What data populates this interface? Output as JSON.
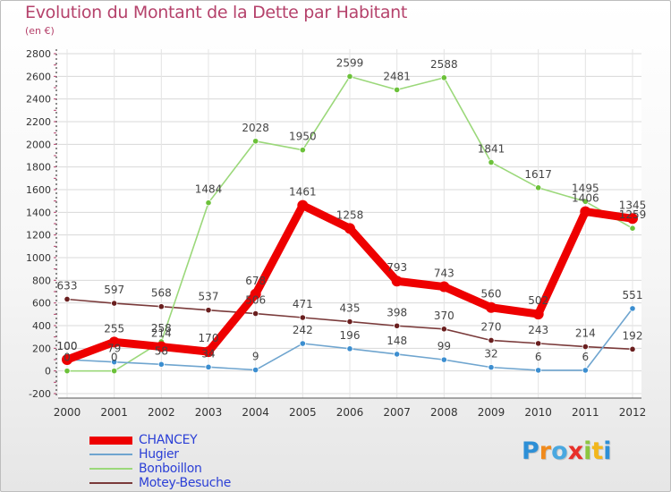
{
  "title": "Evolution du Montant de la Dette par Habitant",
  "unit_label": "(en €)",
  "brand": {
    "text": "Proxiti",
    "letters": [
      {
        "ch": "P",
        "color": "#2d8fd6"
      },
      {
        "ch": "r",
        "color": "#f08a1c"
      },
      {
        "ch": "o",
        "color": "#4aa8e0"
      },
      {
        "ch": "x",
        "color": "#e8302a"
      },
      {
        "ch": "i",
        "color": "#8cc63f"
      },
      {
        "ch": "t",
        "color": "#f2b61c"
      },
      {
        "ch": "i",
        "color": "#2d8fd6"
      }
    ]
  },
  "chart_data": {
    "type": "line",
    "x": [
      "2000",
      "2001",
      "2002",
      "2003",
      "2004",
      "2005",
      "2006",
      "2007",
      "2008",
      "2009",
      "2010",
      "2011",
      "2012"
    ],
    "ylim": [
      -200,
      2800
    ],
    "yticks": [
      "-200",
      "0",
      "200",
      "400",
      "600",
      "800",
      "1000",
      "1200",
      "1400",
      "1600",
      "1800",
      "2000",
      "2200",
      "2400",
      "2600",
      "2800"
    ],
    "grid": true,
    "legend_position": "bottom-left",
    "series": [
      {
        "name": "CHANCEY",
        "color": "#ee0000",
        "marker_color": "#ee0000",
        "width": "thick",
        "values": [
          100,
          255,
          214,
          170,
          678,
          1461,
          1258,
          793,
          743,
          560,
          502,
          1406,
          1345
        ],
        "labels": [
          "100",
          "255",
          "214",
          "170",
          "678",
          "1461",
          "1258",
          "793",
          "743",
          "560",
          "502",
          "1406",
          "1345"
        ]
      },
      {
        "name": "Hugier",
        "color": "#6fa5cf",
        "marker_color": "#3c8ed0",
        "width": "thin",
        "values": [
          100,
          79,
          58,
          34,
          9,
          242,
          196,
          148,
          99,
          32,
          6,
          6,
          551
        ],
        "labels": [
          "100",
          "79",
          "58",
          "34",
          "9",
          "242",
          "196",
          "148",
          "99",
          "32",
          "6",
          "6",
          "551"
        ]
      },
      {
        "name": "Bonboillon",
        "color": "#9bd87a",
        "marker_color": "#6cc13a",
        "width": "thin",
        "values": [
          0,
          0,
          258,
          1484,
          2028,
          1950,
          2599,
          2481,
          2588,
          1841,
          1617,
          1495,
          1259
        ],
        "labels": [
          "0",
          "0",
          "258",
          "1484",
          "2028",
          "1950",
          "2599",
          "2481",
          "2588",
          "1841",
          "1617",
          "1495",
          "1259"
        ]
      },
      {
        "name": "Motey-Besuche",
        "color": "#7a3a3a",
        "marker_color": "#6a1f1f",
        "width": "thin",
        "values": [
          633,
          597,
          568,
          537,
          506,
          471,
          435,
          398,
          370,
          270,
          243,
          214,
          192
        ],
        "labels": [
          "633",
          "597",
          "568",
          "537",
          "506",
          "471",
          "435",
          "398",
          "370",
          "270",
          "243",
          "214",
          "192"
        ]
      }
    ]
  }
}
